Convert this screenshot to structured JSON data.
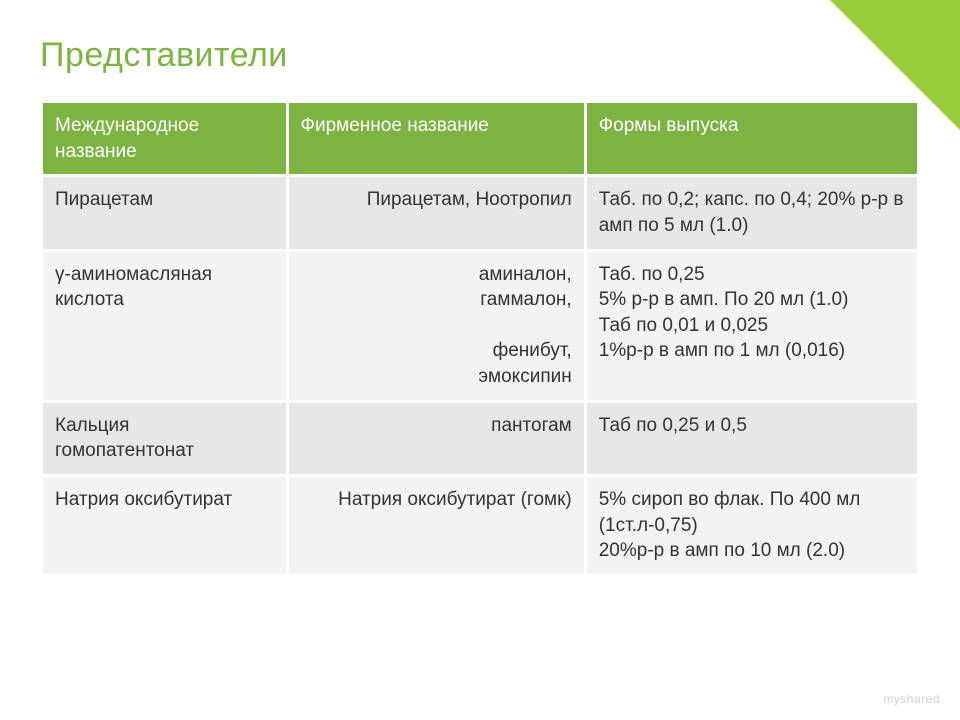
{
  "slide": {
    "title": "Представители",
    "accent_color": "#7cb342",
    "corner_color": "#9acd3c",
    "background_color": "#ffffff",
    "band_colors": [
      "#e7e7e7",
      "#f3f3f3"
    ],
    "text_color": "#333333",
    "title_fontsize": 34,
    "cell_fontsize": 19
  },
  "table": {
    "type": "table",
    "columns": [
      {
        "label": "Международное название",
        "width_pct": 28,
        "align": "left"
      },
      {
        "label": "Фирменное название",
        "width_pct": 34,
        "align": "right"
      },
      {
        "label": "Формы выпуска",
        "width_pct": 38,
        "align": "left"
      }
    ],
    "rows": [
      {
        "intl": "Пирацетам",
        "brand": "Пирацетам, Ноотропил",
        "form": "Таб. по 0,2; капс. по 0,4; 20% р-р в амп по 5 мл (1.0)"
      },
      {
        "intl": "γ-аминомасляная кислота",
        "brand": "аминалон,\nгаммалон,\n\nфенибут,\nэмоксипин",
        "form": "Таб. по 0,25\n5% р-р в амп. По 20 мл (1.0)\nТаб по 0,01 и 0,025\n1%р-р в амп по 1 мл (0,016)"
      },
      {
        "intl": "Кальция гомопатентонат",
        "brand": "пантогам",
        "form": "Таб по 0,25 и 0,5"
      },
      {
        "intl": "Натрия оксибутират",
        "brand": "Натрия оксибутират (гомк)",
        "form": "5% сироп во флак. По 400 мл (1ст.л-0,75)\n20%р-р в амп по 10 мл (2.0)"
      }
    ]
  },
  "footer": {
    "logo_text": "myshared"
  }
}
